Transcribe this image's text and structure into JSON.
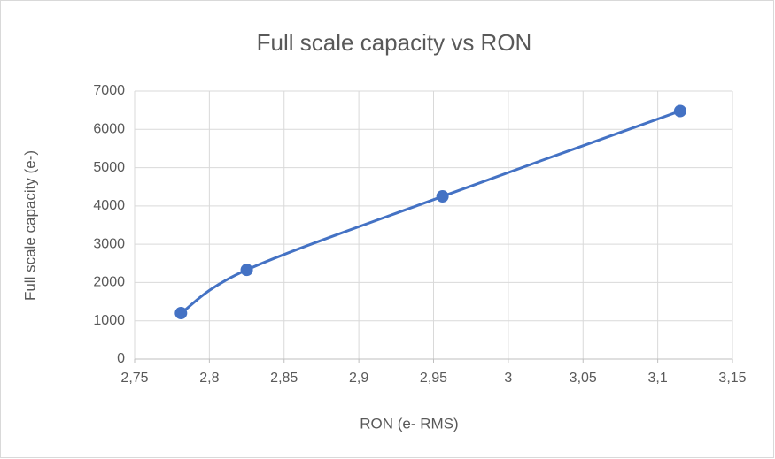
{
  "chart_data": {
    "type": "scatter",
    "title": "Full scale capacity vs RON",
    "x_label": "RON (e- RMS)",
    "y_label": "Full scale capacity (e-)",
    "smooth": true,
    "grid": true,
    "series": [
      {
        "name": "Full scale capacity",
        "color": "#4472c4",
        "x": [
          2.781,
          2.825,
          2.956,
          3.115
        ],
        "values": [
          1200,
          2330,
          4250,
          6480
        ]
      }
    ],
    "xlim": [
      2.75,
      3.15
    ],
    "xticks": [
      {
        "value": 2.75,
        "label": "2,75"
      },
      {
        "value": 2.8,
        "label": "2,8"
      },
      {
        "value": 2.85,
        "label": "2,85"
      },
      {
        "value": 2.9,
        "label": "2,9"
      },
      {
        "value": 2.95,
        "label": "2,95"
      },
      3,
      {
        "value": 3.05,
        "label": "3,05"
      },
      {
        "value": 3.1,
        "label": "3,1"
      },
      {
        "value": 3.15,
        "label": "3,15"
      }
    ],
    "ylim": [
      0,
      7000
    ],
    "yticks": [
      0,
      1000,
      2000,
      3000,
      4000,
      5000,
      6000,
      7000
    ]
  }
}
